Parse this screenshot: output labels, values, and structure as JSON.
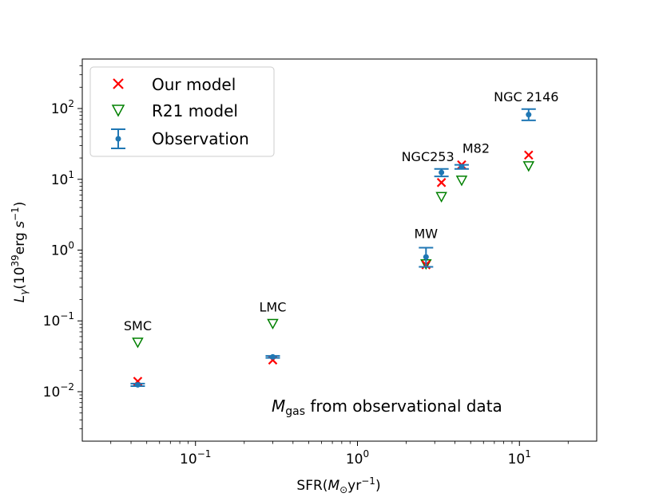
{
  "chart_data": {
    "type": "scatter",
    "xscale": "log",
    "yscale": "log",
    "xlim": [
      0.02,
      30
    ],
    "ylim": [
      0.002,
      500
    ],
    "xlabel": "SFR(M⊙yr⁻¹)",
    "ylabel": "Lγ(10³⁹erg s⁻¹)",
    "x_ticks": [
      {
        "value": 0.1,
        "base": "10",
        "exp": "−1"
      },
      {
        "value": 1,
        "base": "10",
        "exp": "0"
      },
      {
        "value": 10,
        "base": "10",
        "exp": "1"
      }
    ],
    "y_ticks": [
      {
        "value": 0.01,
        "base": "10",
        "exp": "−2"
      },
      {
        "value": 0.1,
        "base": "10",
        "exp": "−1"
      },
      {
        "value": 1,
        "base": "10",
        "exp": "0"
      },
      {
        "value": 10,
        "base": "10",
        "exp": "1"
      },
      {
        "value": 100,
        "base": "10",
        "exp": "2"
      }
    ],
    "annotation": "Mgas from observational data",
    "legend": {
      "position": "top-left",
      "entries": [
        {
          "label": "Our model",
          "marker": "x",
          "color": "#ff0000"
        },
        {
          "label": "R21 model",
          "marker": "triangle-down-open",
          "color": "#008000"
        },
        {
          "label": "Observation",
          "marker": "errorbar",
          "color": "#1f77b4"
        }
      ]
    },
    "galaxies": [
      {
        "name": "SMC",
        "sfr": 0.044,
        "our_model": 0.014,
        "r21_model": 0.05,
        "obs": 0.0125,
        "obs_low": 0.012,
        "obs_high": 0.013
      },
      {
        "name": "LMC",
        "sfr": 0.3,
        "our_model": 0.028,
        "r21_model": 0.092,
        "obs": 0.031,
        "obs_low": 0.03,
        "obs_high": 0.032
      },
      {
        "name": "MW",
        "sfr": 2.65,
        "our_model": 0.62,
        "r21_model": 0.64,
        "obs": 0.8,
        "obs_low": 0.58,
        "obs_high": 1.08
      },
      {
        "name": "NGC253",
        "sfr": 3.3,
        "our_model": 9.0,
        "r21_model": 5.7,
        "obs": 12.5,
        "obs_low": 11.0,
        "obs_high": 14.0
      },
      {
        "name": "M82",
        "sfr": 4.4,
        "our_model": 16.0,
        "r21_model": 9.7,
        "obs": 15.0,
        "obs_low": 14.0,
        "obs_high": 16.0
      },
      {
        "name": "NGC 2146",
        "sfr": 11.4,
        "our_model": 22.0,
        "r21_model": 15.5,
        "obs": 82.0,
        "obs_low": 68.0,
        "obs_high": 98.0
      }
    ]
  }
}
